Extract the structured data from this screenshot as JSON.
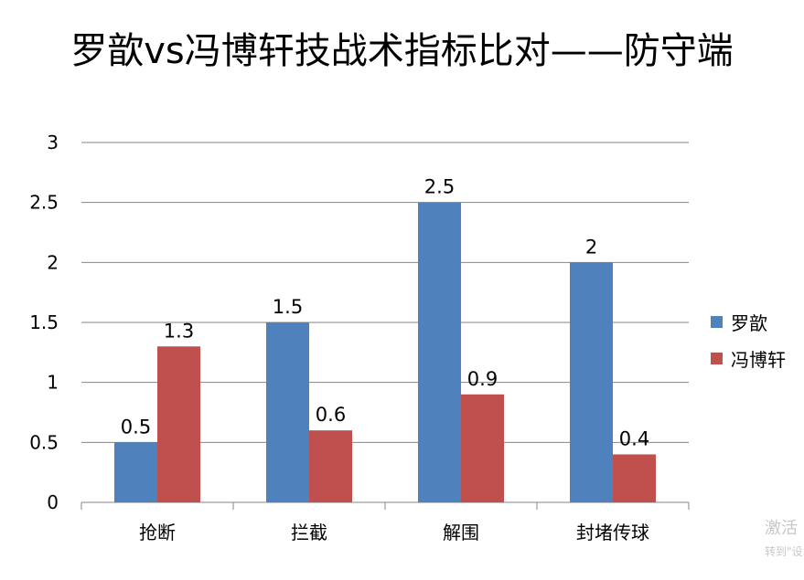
{
  "chart_data": {
    "type": "bar",
    "title": "罗歆vs冯博轩技战术指标比对——防守端",
    "categories": [
      "抢断",
      "拦截",
      "解围",
      "封堵传球"
    ],
    "series": [
      {
        "name": "罗歆",
        "values": [
          0.5,
          1.5,
          2.5,
          2
        ],
        "labels": [
          "0.5",
          "1.5",
          "2.5",
          "2"
        ],
        "color": "#4f81bd"
      },
      {
        "name": "冯博轩",
        "values": [
          1.3,
          0.6,
          0.9,
          0.4
        ],
        "labels": [
          "1.3",
          "0.6",
          "0.9",
          "0.4"
        ],
        "color": "#c0504d"
      }
    ],
    "ylim": [
      0,
      3
    ],
    "yticks": [
      "0",
      "0.5",
      "1",
      "1.5",
      "2",
      "2.5",
      "3"
    ],
    "ytick_values": [
      0,
      0.5,
      1,
      1.5,
      2,
      2.5,
      3
    ],
    "grid": true,
    "legend_position": "right",
    "gridline_color": "#868686"
  },
  "watermark": {
    "line1": "激活",
    "line2": "转到\"设"
  }
}
